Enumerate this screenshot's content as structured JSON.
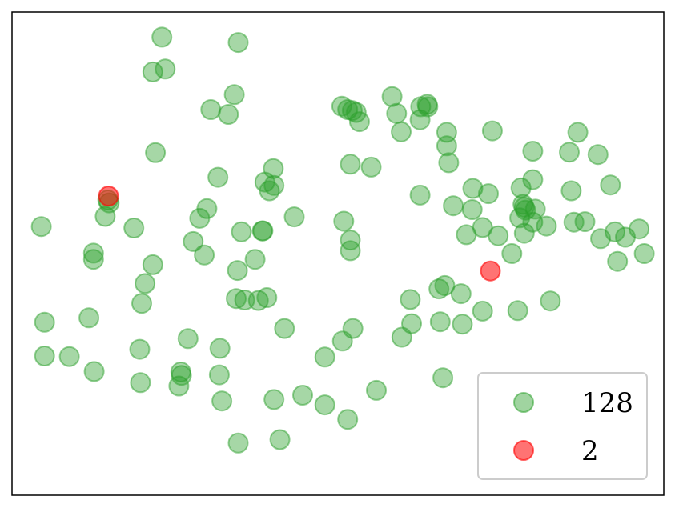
{
  "chart_data": {
    "type": "scatter",
    "title": "",
    "xlabel": "",
    "ylabel": "",
    "axes_visible": false,
    "grid": false,
    "legend_position": "lower-right",
    "series": [
      {
        "name": "128",
        "color": "#2ca02c",
        "points": [
          [
            0.045,
            0.556
          ],
          [
            0.05,
            0.358
          ],
          [
            0.05,
            0.288
          ],
          [
            0.088,
            0.287
          ],
          [
            0.118,
            0.367
          ],
          [
            0.125,
            0.501
          ],
          [
            0.125,
            0.488
          ],
          [
            0.126,
            0.256
          ],
          [
            0.143,
            0.577
          ],
          [
            0.147,
            0.611
          ],
          [
            0.149,
            0.605
          ],
          [
            0.187,
            0.553
          ],
          [
            0.196,
            0.302
          ],
          [
            0.197,
            0.233
          ],
          [
            0.199,
            0.397
          ],
          [
            0.204,
            0.438
          ],
          [
            0.216,
            0.477
          ],
          [
            0.216,
            0.876
          ],
          [
            0.22,
            0.709
          ],
          [
            0.23,
            0.948
          ],
          [
            0.235,
            0.882
          ],
          [
            0.256,
            0.226
          ],
          [
            0.26,
            0.248
          ],
          [
            0.259,
            0.255
          ],
          [
            0.27,
            0.324
          ],
          [
            0.278,
            0.525
          ],
          [
            0.288,
            0.573
          ],
          [
            0.295,
            0.497
          ],
          [
            0.299,
            0.593
          ],
          [
            0.305,
            0.798
          ],
          [
            0.316,
            0.658
          ],
          [
            0.318,
            0.249
          ],
          [
            0.319,
            0.304
          ],
          [
            0.322,
            0.195
          ],
          [
            0.332,
            0.788
          ],
          [
            0.341,
            0.829
          ],
          [
            0.344,
            0.407
          ],
          [
            0.346,
            0.465
          ],
          [
            0.347,
            0.937
          ],
          [
            0.347,
            0.108
          ],
          [
            0.352,
            0.545
          ],
          [
            0.357,
            0.404
          ],
          [
            0.373,
            0.488
          ],
          [
            0.378,
            0.403
          ],
          [
            0.384,
            0.547
          ],
          [
            0.385,
            0.547
          ],
          [
            0.388,
            0.648
          ],
          [
            0.391,
            0.409
          ],
          [
            0.395,
            0.63
          ],
          [
            0.401,
            0.676
          ],
          [
            0.402,
            0.641
          ],
          [
            0.402,
            0.198
          ],
          [
            0.411,
            0.115
          ],
          [
            0.418,
            0.345
          ],
          [
            0.433,
            0.576
          ],
          [
            0.446,
            0.207
          ],
          [
            0.48,
            0.286
          ],
          [
            0.48,
            0.187
          ],
          [
            0.506,
            0.805
          ],
          [
            0.507,
            0.319
          ],
          [
            0.509,
            0.567
          ],
          [
            0.515,
            0.798
          ],
          [
            0.515,
            0.157
          ],
          [
            0.519,
            0.506
          ],
          [
            0.519,
            0.528
          ],
          [
            0.519,
            0.685
          ],
          [
            0.522,
            0.796
          ],
          [
            0.523,
            0.345
          ],
          [
            0.528,
            0.792
          ],
          [
            0.533,
            0.773
          ],
          [
            0.551,
            0.679
          ],
          [
            0.559,
            0.217
          ],
          [
            0.583,
            0.825
          ],
          [
            0.59,
            0.79
          ],
          [
            0.597,
            0.752
          ],
          [
            0.598,
            0.327
          ],
          [
            0.611,
            0.405
          ],
          [
            0.613,
            0.355
          ],
          [
            0.626,
            0.621
          ],
          [
            0.626,
            0.777
          ],
          [
            0.627,
            0.804
          ],
          [
            0.637,
            0.809
          ],
          [
            0.638,
            0.804
          ],
          [
            0.655,
            0.427
          ],
          [
            0.657,
            0.359
          ],
          [
            0.661,
            0.243
          ],
          [
            0.664,
            0.434
          ],
          [
            0.667,
            0.751
          ],
          [
            0.667,
            0.723
          ],
          [
            0.67,
            0.688
          ],
          [
            0.677,
            0.599
          ],
          [
            0.689,
            0.417
          ],
          [
            0.691,
            0.354
          ],
          [
            0.697,
            0.539
          ],
          [
            0.706,
            0.591
          ],
          [
            0.707,
            0.635
          ],
          [
            0.722,
            0.554
          ],
          [
            0.722,
            0.381
          ],
          [
            0.731,
            0.624
          ],
          [
            0.737,
            0.754
          ],
          [
            0.746,
            0.537
          ],
          [
            0.767,
            0.5
          ],
          [
            0.776,
            0.382
          ],
          [
            0.779,
            0.574
          ],
          [
            0.781,
            0.636
          ],
          [
            0.786,
            0.596
          ],
          [
            0.803,
            0.592
          ],
          [
            0.786,
            0.542
          ],
          [
            0.784,
            0.602
          ],
          [
            0.788,
            0.59
          ],
          [
            0.799,
            0.565
          ],
          [
            0.799,
            0.653
          ],
          [
            0.799,
            0.712
          ],
          [
            0.82,
            0.557
          ],
          [
            0.826,
            0.402
          ],
          [
            0.855,
            0.71
          ],
          [
            0.862,
            0.565
          ],
          [
            0.858,
            0.63
          ],
          [
            0.868,
            0.751
          ],
          [
            0.879,
            0.566
          ],
          [
            0.899,
            0.705
          ],
          [
            0.903,
            0.531
          ],
          [
            0.918,
            0.642
          ],
          [
            0.925,
            0.545
          ],
          [
            0.929,
            0.484
          ],
          [
            0.941,
            0.534
          ],
          [
            0.962,
            0.551
          ],
          [
            0.97,
            0.5
          ]
        ]
      },
      {
        "name": "2",
        "color": "#ff0000",
        "points": [
          [
            0.148,
            0.619
          ],
          [
            0.734,
            0.464
          ]
        ]
      }
    ]
  },
  "legend": {
    "entries": [
      {
        "label": "128",
        "color": "#2ca02c"
      },
      {
        "label": "2",
        "color": "#ff0000"
      }
    ]
  }
}
